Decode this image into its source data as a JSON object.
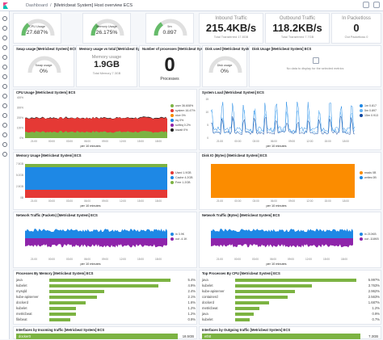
{
  "breadcrumb": {
    "home": "Dashboard",
    "current": "[Metricbeat System] Host overview ECS"
  },
  "sidebar_icons": [
    "clock-icon",
    "compass-icon",
    "visualize-icon",
    "dashboard-icon",
    "canvas-icon",
    "maps-icon",
    "ml-icon",
    "infra-icon",
    "logs-icon",
    "apm-icon",
    "uptime-icon",
    "siem-icon",
    "devtools-icon",
    "monitoring-icon",
    "management-icon"
  ],
  "gauges_top": [
    {
      "label": "CPU Usage",
      "value": "27.687%",
      "fraction": 0.277
    },
    {
      "label": "Memory Usage",
      "value": "26.175%",
      "fraction": 0.262
    },
    {
      "label": "Load Gauge",
      "value": "0.897",
      "fraction": 0.3,
      "sublabel": "5m"
    }
  ],
  "inbound": {
    "title": "Inbound Traffic",
    "value": "215.4KB/s",
    "sub": "Total Transferred 17.8GB"
  },
  "outbound": {
    "title": "Outbound Traffic",
    "value": "118.2KB/s",
    "sub": "Total Transferred 7.7GB"
  },
  "packetloss": {
    "title": "In Packetloss",
    "value": "0",
    "sub": "Out Packetloss 0"
  },
  "row2": {
    "swap_title": "Swap usage [Metricbeat System] ECS",
    "swap_label": "Swap usage",
    "swap_value": "0%",
    "swap_fraction": 0,
    "memtotal_title": "Memory usage vs total [Metricbeat System] ECS",
    "mem_label": "Memory usage",
    "mem_value": "1.9GB",
    "mem_sub": "Total Memory 7.3GB",
    "processes_title": "Number of processes [Metricbeat System] ECS",
    "processes_value": "0",
    "processes_label": "Processes",
    "disk_title": "Disk used [Metricbeat System] ECS",
    "disk_label": "Disk usage",
    "disk_value": "0%",
    "disk_fraction": 0,
    "diskusage_title": "Disk Usage [Metricbeat System] ECS",
    "diskusage_msg": "No data to display for the selected metrics"
  },
  "cpu_chart": {
    "title": "CPU Usage [Metricbeat System] ECS",
    "xticks": [
      "21:00",
      "00:00",
      "03:00",
      "06:00",
      "09:00",
      "12:00",
      "15:00",
      "18:00"
    ],
    "yticks": [
      "400%",
      "300%",
      "200%",
      "100%",
      "0%"
    ],
    "xlabel": "per 10 minutes",
    "legend": [
      {
        "name": "user",
        "value": "36.608%",
        "color": "#7cb342"
      },
      {
        "name": "system",
        "value": "16.47%",
        "color": "#e53935"
      },
      {
        "name": "nice",
        "value": "0%",
        "color": "#fb8c00"
      },
      {
        "name": "irq",
        "value": "0%",
        "color": "#1e88e5"
      },
      {
        "name": "softirq",
        "value": "0.2%",
        "color": "#8e24aa"
      },
      {
        "name": "iowait",
        "value": "0%",
        "color": "#222222"
      }
    ]
  },
  "load_chart": {
    "title": "System Load [Metricbeat System] ECS",
    "xticks": [
      "21:00",
      "00:00",
      "03:00",
      "06:00",
      "09:00",
      "12:00",
      "15:00",
      "18:00"
    ],
    "yticks": [
      "15",
      "10",
      "5",
      "0"
    ],
    "xlabel": "per 10 minutes",
    "legend": [
      {
        "name": "1m",
        "value": "0.817",
        "color": "#1e88e5"
      },
      {
        "name": "5m",
        "value": "0.897",
        "color": "#64b5f6"
      },
      {
        "name": "15m",
        "value": "0.913",
        "color": "#0d47a1"
      }
    ]
  },
  "mem_chart": {
    "title": "Memory Usage [Metricbeat System] ECS",
    "xticks": [
      "21:00",
      "00:00",
      "03:00",
      "06:00",
      "09:00",
      "12:00",
      "15:00",
      "18:00"
    ],
    "yticks": [
      "7.5GB",
      "5.0GB",
      "2.5GB",
      "0B"
    ],
    "xlabel": "per 10 minutes",
    "legend": [
      {
        "name": "Used",
        "value": "1.9GB",
        "color": "#e53935"
      },
      {
        "name": "Cache",
        "value": "4.2GB",
        "color": "#1e88e5"
      },
      {
        "name": "Free",
        "value": "1.2GB",
        "color": "#7cb342"
      }
    ]
  },
  "diskio_chart": {
    "title": "Disk IO (Bytes) [Metricbeat System] ECS",
    "xticks": [
      "21:00",
      "00:00",
      "03:00",
      "06:00",
      "09:00",
      "12:00",
      "15:00",
      "18:00"
    ],
    "xlabel": "per 10 minutes",
    "legend": [
      {
        "name": "reads",
        "value": "0B",
        "color": "#fb8c00"
      },
      {
        "name": "writes",
        "value": "0B",
        "color": "#1e88e5"
      }
    ]
  },
  "netpackets_chart": {
    "title": "Network Traffic (Packets) [Metricbeat System] ECS",
    "xticks": [
      "21:00",
      "00:00",
      "03:00",
      "06:00",
      "09:00",
      "12:00",
      "15:00",
      "18:00"
    ],
    "xlabel": "per 10 minutes",
    "legend": [
      {
        "name": "in",
        "value": "3.9K",
        "color": "#1e88e5"
      },
      {
        "name": "out",
        "value": "-4.1K",
        "color": "#8e24aa"
      }
    ]
  },
  "netbytes_chart": {
    "title": "Network Traffic (Bytes) [Metricbeat System] ECS",
    "xticks": [
      "21:00",
      "00:00",
      "03:00",
      "06:00",
      "09:00",
      "12:00",
      "15:00",
      "18:00"
    ],
    "xlabel": "per 10 minutes",
    "legend": [
      {
        "name": "in",
        "value": "210KB",
        "color": "#1e88e5"
      },
      {
        "name": "out",
        "value": "-118KB",
        "color": "#8e24aa"
      }
    ]
  },
  "proc_mem": {
    "title": "Processes By Memory [Metricbeat System] ECS",
    "rows": [
      {
        "name": "java",
        "value": "5.4%",
        "frac": 1.0
      },
      {
        "name": "kubelet",
        "value": "4.9%",
        "frac": 0.9
      },
      {
        "name": "mysqld",
        "value": "2.4%",
        "frac": 0.45
      },
      {
        "name": "kube-apiserver",
        "value": "2.1%",
        "frac": 0.39
      },
      {
        "name": "dockerd",
        "value": "1.6%",
        "frac": 0.3
      },
      {
        "name": "kubelet",
        "value": "1.2%",
        "frac": 0.22
      },
      {
        "name": "metricbeat",
        "value": "1.2%",
        "frac": 0.22
      },
      {
        "name": "filebeat",
        "value": "0.9%",
        "frac": 0.17
      }
    ]
  },
  "proc_cpu": {
    "title": "Top Processes By CPU [Metricbeat System] ECS",
    "rows": [
      {
        "name": "java",
        "value": "5.997%",
        "frac": 1.0
      },
      {
        "name": "kubelet",
        "value": "3.763%",
        "frac": 0.63
      },
      {
        "name": "kube-apiserver",
        "value": "2.962%",
        "frac": 0.49
      },
      {
        "name": "containerd",
        "value": "2.563%",
        "frac": 0.43
      },
      {
        "name": "dockerd",
        "value": "1.687%",
        "frac": 0.28
      },
      {
        "name": "metricbeat",
        "value": "1.2%",
        "frac": 0.2
      },
      {
        "name": "java",
        "value": "0.9%",
        "frac": 0.15
      },
      {
        "name": "kubelet",
        "value": "0.7%",
        "frac": 0.12
      }
    ]
  },
  "if_in": {
    "title": "Interfaces by Incoming traffic [Metricbeat System] ECS",
    "row": {
      "name": "docker0",
      "value": "18.5GB"
    }
  },
  "if_out": {
    "title": "Interfaces by Outgoing traffic [Metricbeat System] ECS",
    "row": {
      "name": "eth0",
      "value": "7.3GB"
    }
  }
}
